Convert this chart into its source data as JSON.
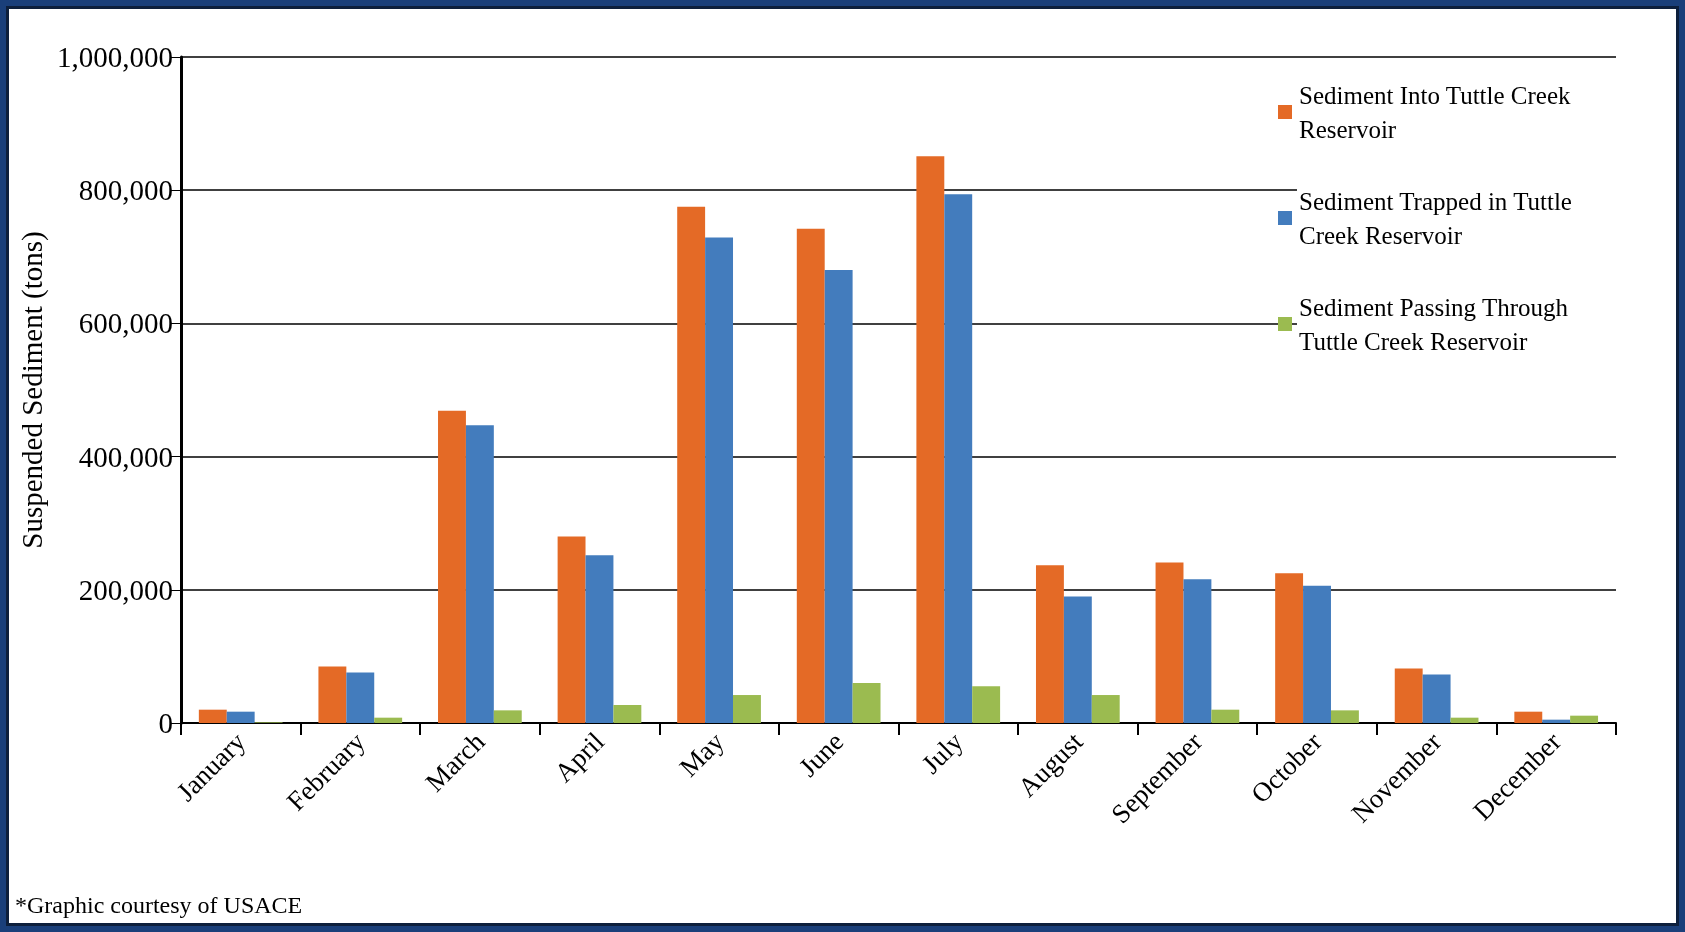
{
  "chart_data": {
    "type": "bar",
    "ylabel": "Suspended Sediment (tons)",
    "categories": [
      "January",
      "February",
      "March",
      "April",
      "May",
      "June",
      "July",
      "August",
      "September",
      "October",
      "November",
      "December"
    ],
    "series": [
      {
        "name": "Sediment Into Tuttle Creek Reservoir",
        "color": "#e46a26",
        "values": [
          20000,
          85000,
          469000,
          280000,
          775000,
          742000,
          851000,
          237000,
          241000,
          225000,
          82000,
          17000
        ]
      },
      {
        "name": "Sediment Trapped in Tuttle Creek Reservoir",
        "color": "#437cbd",
        "values": [
          17000,
          76000,
          447000,
          252000,
          729000,
          680000,
          794000,
          190000,
          216000,
          206000,
          73000,
          5000
        ]
      },
      {
        "name": "Sediment Passing Through Tuttle Creek Reservoir",
        "color": "#9bbb50",
        "values": [
          1000,
          8000,
          19000,
          27000,
          42000,
          60000,
          55000,
          42000,
          20000,
          19000,
          8000,
          11000
        ]
      }
    ],
    "ylim": [
      0,
      1000000
    ],
    "yticks": [
      0,
      {
        "value": 200000,
        "label": "200,000"
      },
      {
        "value": 400000,
        "label": "400,000"
      },
      {
        "value": 600000,
        "label": "600,000"
      },
      {
        "value": 800000,
        "label": "800,000"
      },
      {
        "value": 1000000,
        "label": "1,000,000"
      }
    ],
    "grid": "y",
    "legend": "top right",
    "annotations": [
      "*Graphic courtesy of USACE"
    ]
  }
}
